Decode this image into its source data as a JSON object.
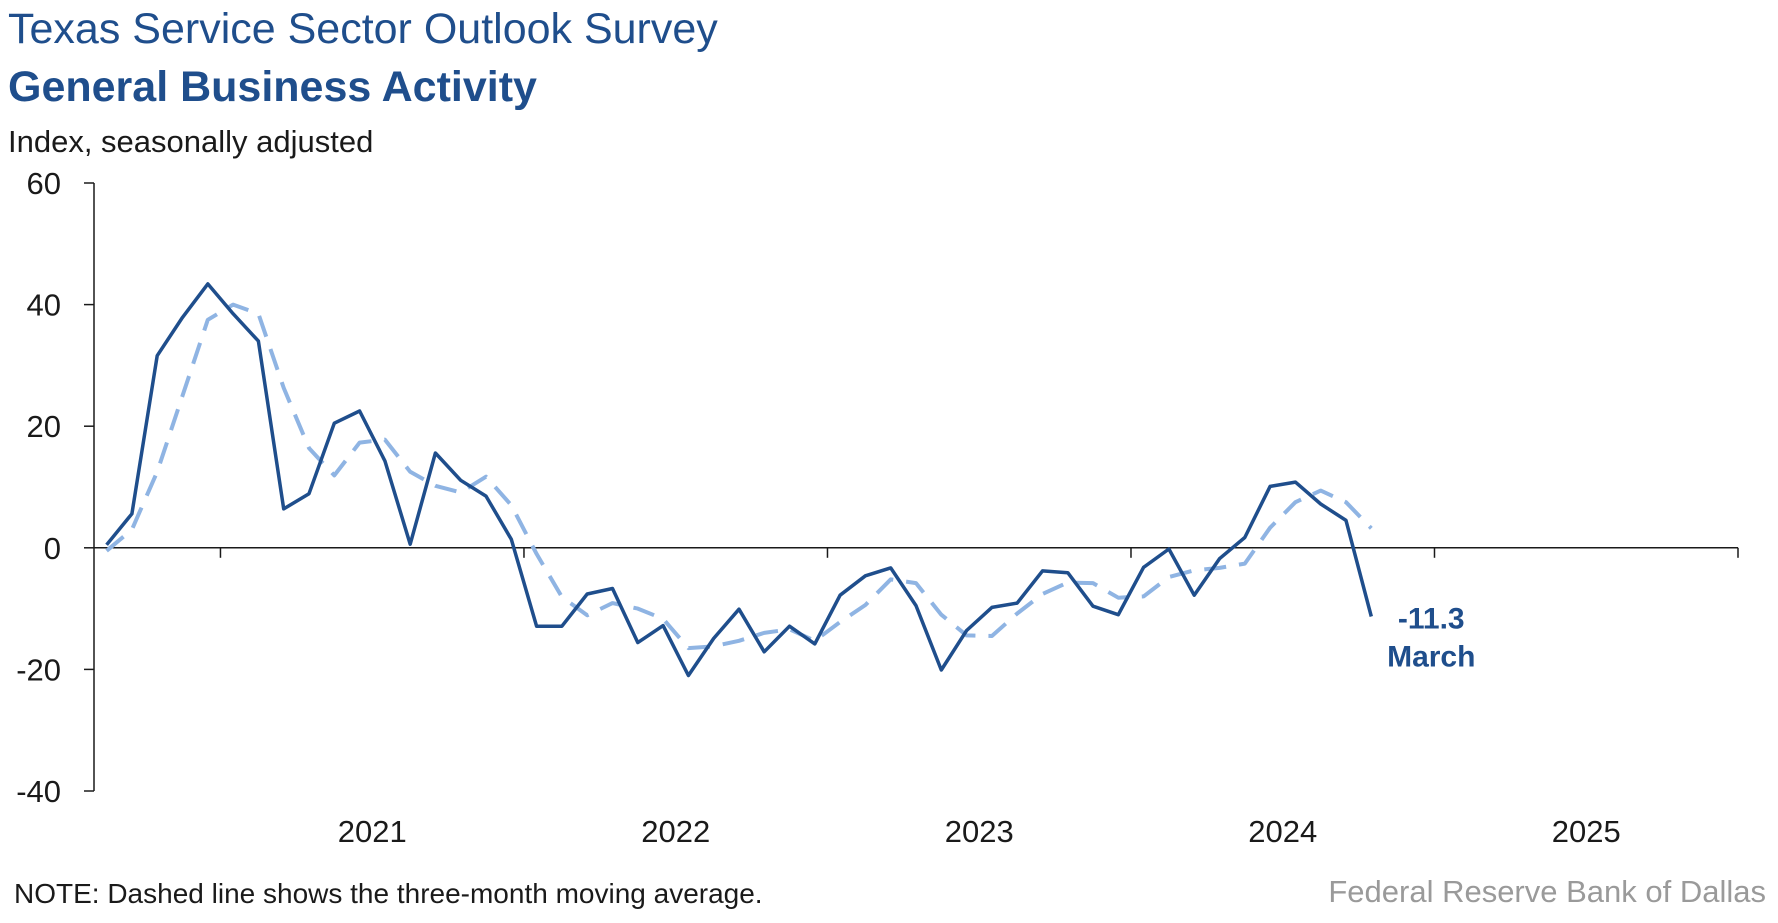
{
  "header": {
    "title": "Texas Service Sector Outlook Survey",
    "subtitle": "General Business Activity",
    "units": "Index, seasonally adjusted"
  },
  "footer": {
    "note": "NOTE: Dashed line shows the three-month moving average.",
    "source": "Federal Reserve Bank of Dallas"
  },
  "chart_data": {
    "type": "line",
    "title": "General Business Activity",
    "ylabel": "Index, seasonally adjusted",
    "ylim": [
      -40,
      60
    ],
    "yticks": [
      -40,
      -20,
      0,
      20,
      40,
      60
    ],
    "x_start": "2020-08",
    "x_end": "2025-12",
    "xtick_labels": [
      "2021",
      "2022",
      "2023",
      "2024",
      "2025"
    ],
    "grid": false,
    "colors": {
      "index": "#1f4e8c",
      "moving_average": "#8fb4e3"
    },
    "annotation": {
      "value": "-11.3",
      "label": "March"
    },
    "series": [
      {
        "name": "Index",
        "style": "solid",
        "start": "2020-08",
        "values": [
          0.5,
          5.6,
          31.6,
          37.9,
          43.4,
          38.5,
          34.0,
          6.4,
          8.9,
          20.5,
          22.5,
          14.3,
          0.6,
          15.6,
          11.1,
          8.5,
          1.4,
          -12.9,
          -12.9,
          -7.6,
          -6.7,
          -15.6,
          -12.8,
          -21.0,
          -14.9,
          -10.1,
          -17.1,
          -12.9,
          -15.8,
          -7.8,
          -4.6,
          -3.3,
          -9.5,
          -20.1,
          -13.6,
          -9.8,
          -9.1,
          -3.8,
          -4.1,
          -9.6,
          -11.0,
          -3.2,
          -0.2,
          -7.8,
          -1.8,
          1.7,
          10.1,
          10.8,
          7.2,
          4.5,
          -11.3
        ]
      },
      {
        "name": "Three-month moving average",
        "style": "dashed",
        "start": "2020-08",
        "values": [
          -0.5,
          3.0,
          12.5,
          25.0,
          37.5,
          40.0,
          38.5,
          26.3,
          16.4,
          11.9,
          17.3,
          17.8,
          12.5,
          10.2,
          9.1,
          11.7,
          7.0,
          -1.0,
          -8.1,
          -11.1,
          -9.1,
          -10.0,
          -11.7,
          -16.5,
          -16.2,
          -15.3,
          -14.0,
          -13.4,
          -15.3,
          -12.2,
          -9.4,
          -5.2,
          -5.8,
          -11.0,
          -14.4,
          -14.5,
          -10.8,
          -7.6,
          -5.7,
          -5.8,
          -8.2,
          -8.0,
          -4.8,
          -3.7,
          -3.3,
          -2.6,
          3.3,
          7.5,
          9.4,
          7.5,
          3.2
        ]
      }
    ]
  }
}
